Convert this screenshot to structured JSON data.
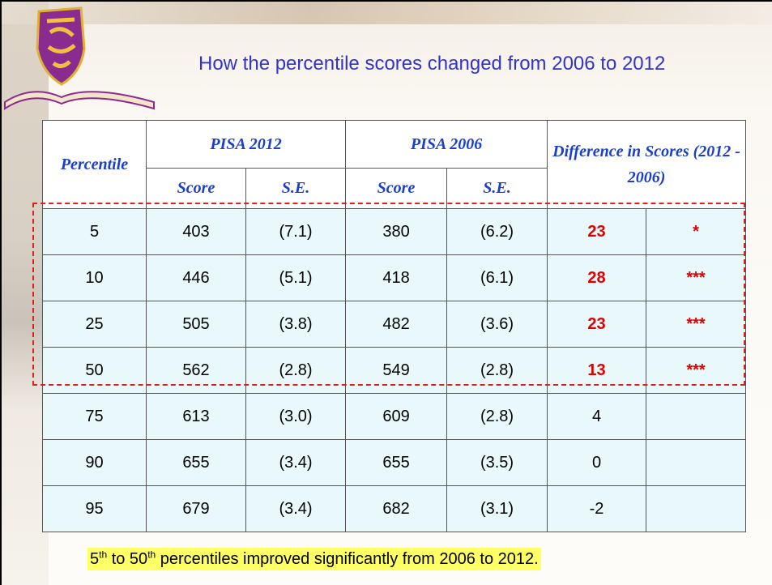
{
  "header": {
    "title": "How the percentile scores changed from 2006 to 2012"
  },
  "table": {
    "headers": {
      "percentile": "Percentile",
      "pisa_2012": "PISA 2012",
      "pisa_2006": "PISA 2006",
      "difference": "Difference in Scores (2012 - 2006)",
      "score": "Score",
      "se": "S.E."
    },
    "rows": [
      {
        "percentile": "5",
        "score_2012": "403",
        "se_2012": "(7.1)",
        "score_2006": "380",
        "se_2006": "(6.2)",
        "difference": "23",
        "significance": "*"
      },
      {
        "percentile": "10",
        "score_2012": "446",
        "se_2012": "(5.1)",
        "score_2006": "418",
        "se_2006": "(6.1)",
        "difference": "28",
        "significance": "***"
      },
      {
        "percentile": "25",
        "score_2012": "505",
        "se_2012": "(3.8)",
        "score_2006": "482",
        "se_2006": "(3.6)",
        "difference": "23",
        "significance": "***"
      },
      {
        "percentile": "50",
        "score_2012": "562",
        "se_2012": "(2.8)",
        "score_2006": "549",
        "se_2006": "(2.8)",
        "difference": "13",
        "significance": "***"
      },
      {
        "percentile": "75",
        "score_2012": "613",
        "se_2012": "(3.0)",
        "score_2006": "609",
        "se_2006": "(2.8)",
        "difference": "4"
      },
      {
        "percentile": "90",
        "score_2012": "655",
        "se_2012": "(3.4)",
        "score_2006": "655",
        "se_2006": "(3.5)",
        "difference": "0"
      },
      {
        "percentile": "95",
        "score_2012": "679",
        "se_2012": "(3.4)",
        "score_2006": "682",
        "se_2006": "(3.1)",
        "difference": "-2"
      }
    ]
  },
  "footnote": [
    "5",
    "th",
    " to 50",
    "th",
    " percentiles improved significantly from 2006 to 2012."
  ]
}
